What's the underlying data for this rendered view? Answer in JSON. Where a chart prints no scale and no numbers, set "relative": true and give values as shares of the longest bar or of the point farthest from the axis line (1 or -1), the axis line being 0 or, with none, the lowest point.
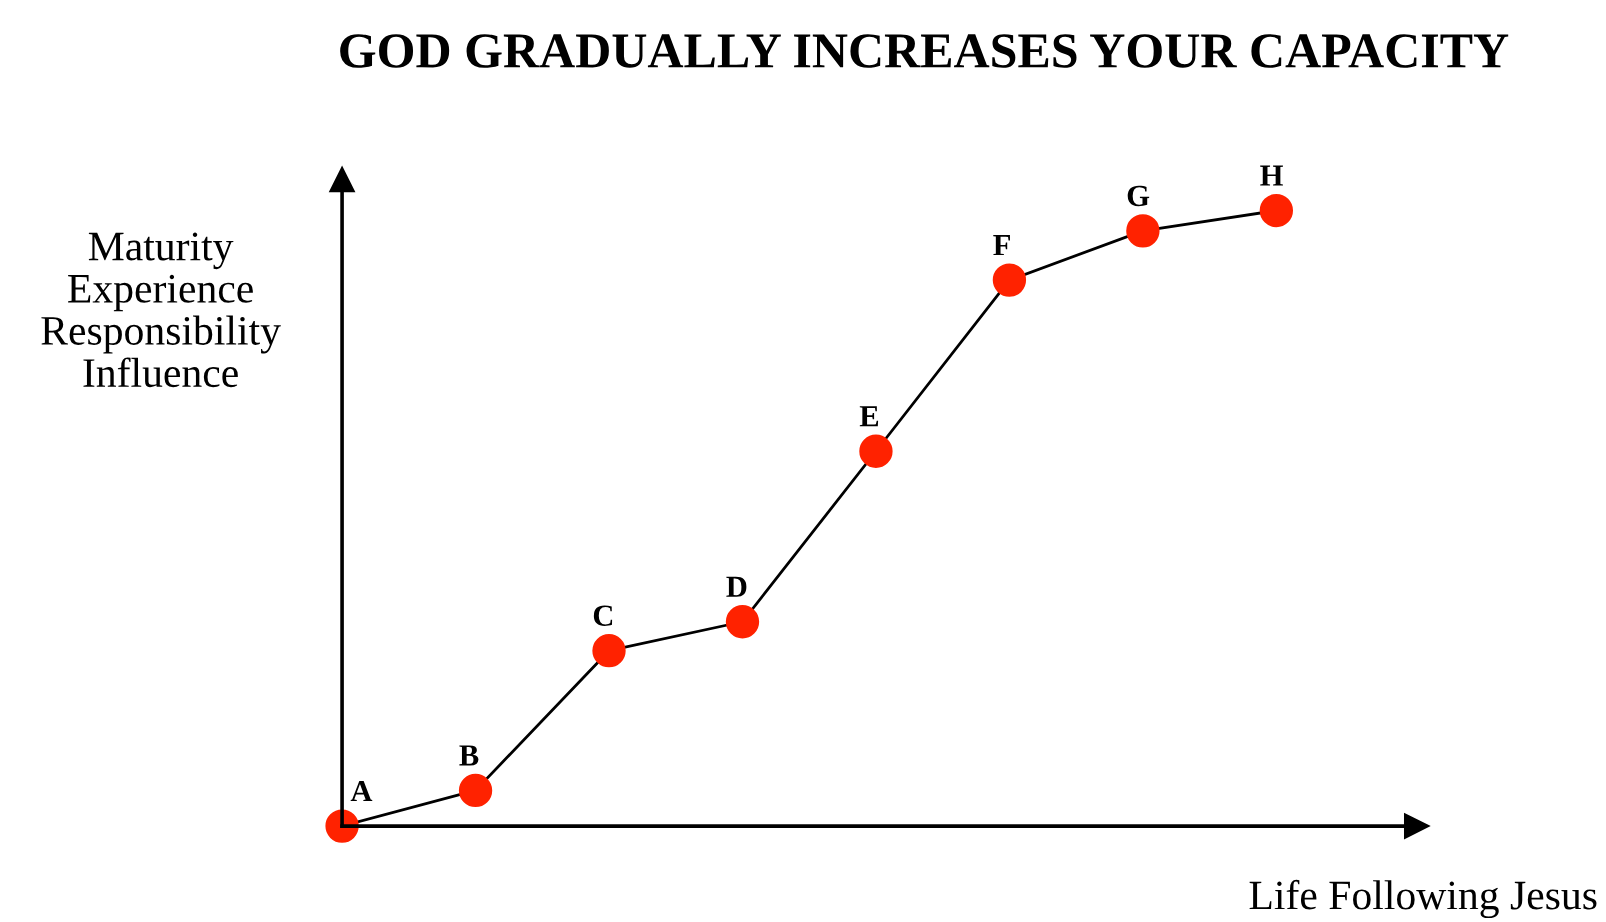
{
  "chart_data": {
    "type": "line",
    "title": "GOD GRADUALLY INCREASES YOUR CAPACITY",
    "xlabel": "Life Following Jesus",
    "ylabel": "Maturity\nExperience\nResponsibility\nInfluence",
    "relative": true,
    "categories": [
      null,
      null,
      null,
      null,
      null,
      null,
      null,
      null
    ],
    "series": [
      {
        "color": "#000000",
        "colors": [
          "#ff2200",
          "#ff2200",
          "#ff2200",
          "#ff2200",
          "#ff2200",
          "#ff2200",
          "#ff2200",
          "#ff2200"
        ],
        "values": [
          0,
          0.058,
          0.285,
          0.332,
          0.609,
          0.887,
          0.967,
          1
        ]
      }
    ],
    "annotations": [
      "A",
      "B",
      "C",
      "D",
      "E",
      "F",
      "G",
      "H"
    ],
    "marker": "circle",
    "line_style": "solid"
  }
}
